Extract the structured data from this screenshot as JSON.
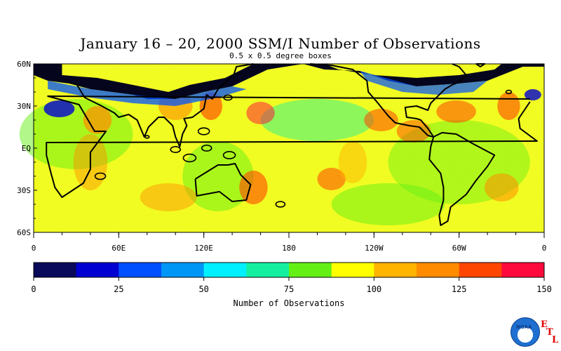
{
  "title": "January 16 – 20, 2000 SSM/I Number of Observations",
  "subtitle": "0.5 x 0.5 degree boxes",
  "y_axis": {
    "ticks": [
      {
        "label": "60N",
        "lat": 60
      },
      {
        "label": "30N",
        "lat": 30
      },
      {
        "label": "EQ",
        "lat": 0
      },
      {
        "label": "30S",
        "lat": -30
      },
      {
        "label": "60S",
        "lat": -60
      }
    ]
  },
  "x_axis": {
    "ticks": [
      {
        "label": "0",
        "lon": 0
      },
      {
        "label": "60E",
        "lon": 60
      },
      {
        "label": "120E",
        "lon": 120
      },
      {
        "label": "180",
        "lon": 180
      },
      {
        "label": "120W",
        "lon": 240
      },
      {
        "label": "60W",
        "lon": 300
      },
      {
        "label": "0",
        "lon": 360
      }
    ]
  },
  "colorbar": {
    "label": "Number of Observations",
    "min": 0,
    "max": 150,
    "ticks": [
      {
        "label": "0",
        "value": 0
      },
      {
        "label": "25",
        "value": 25
      },
      {
        "label": "50",
        "value": 50
      },
      {
        "label": "75",
        "value": 75
      },
      {
        "label": "100",
        "value": 100
      },
      {
        "label": "125",
        "value": 125
      },
      {
        "label": "150",
        "value": 150
      }
    ],
    "colors": [
      "#0a0a5a",
      "#0000d2",
      "#0050ff",
      "#0096f5",
      "#00f0ff",
      "#14f0a0",
      "#64f014",
      "#ffff00",
      "#ffb400",
      "#ff8c00",
      "#ff4600",
      "#ff0a3c"
    ]
  },
  "logo": {
    "name": "noaa-logo",
    "text": "NOAA"
  },
  "lab_mark": [
    "E",
    "T",
    "L"
  ]
}
